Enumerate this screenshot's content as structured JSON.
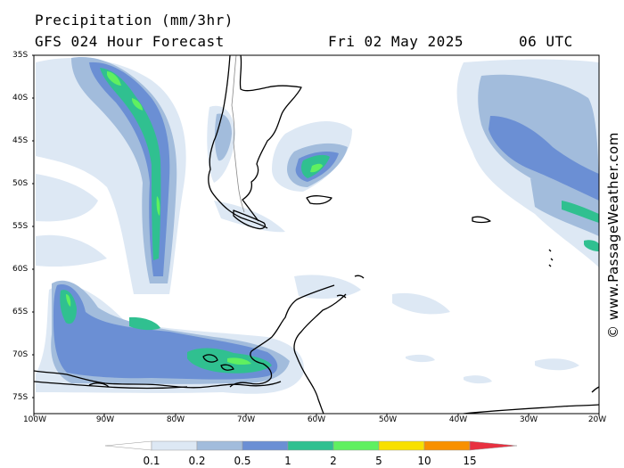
{
  "header": {
    "title": "Precipitation (mm/3hr)",
    "model": "GFS 024 Hour Forecast",
    "date": "Fri 02 May 2025",
    "time": "06 UTC"
  },
  "credit": "© www.PassageWeather.com",
  "map": {
    "lat_labels": [
      "35S",
      "40S",
      "45S",
      "50S",
      "55S",
      "60S",
      "65S",
      "70S",
      "75S"
    ],
    "lon_labels": [
      "100W",
      "90W",
      "80W",
      "70W",
      "60W",
      "50W",
      "40W",
      "30W",
      "20W"
    ]
  },
  "legend": {
    "labels": [
      "0.1",
      "0.2",
      "0.5",
      "1",
      "2",
      "5",
      "10",
      "15"
    ],
    "colors": [
      "#ffffff",
      "#dde8f4",
      "#a2bcdc",
      "#6b8fd4",
      "#30c090",
      "#60f060",
      "#f8e000",
      "#f89000",
      "#e83040"
    ]
  },
  "colors": {
    "light_blue": "#dde8f4",
    "mid_blue": "#a2bcdc",
    "blue": "#6b8fd4",
    "teal": "#30c090",
    "green": "#60f060",
    "coast": "#000000"
  }
}
